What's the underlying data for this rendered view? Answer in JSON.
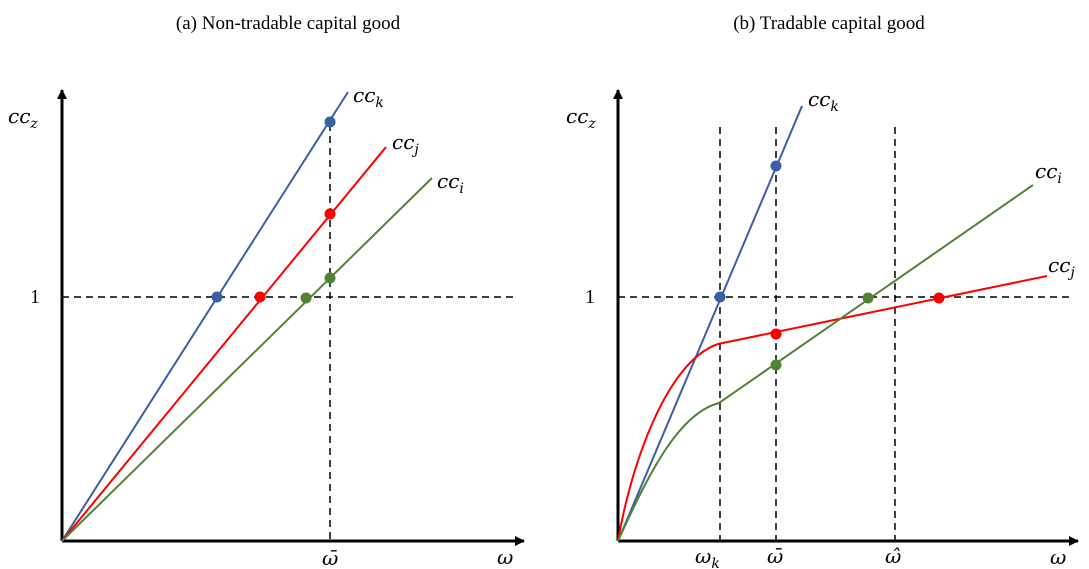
{
  "panels": [
    {
      "title": "(a) Non-tradable capital good",
      "y_axis_label": "cc",
      "y_axis_label_sub": "z",
      "x_axis_label": "ω",
      "y_tick": "1",
      "x_ticks": [
        "ω̄"
      ],
      "curves": [
        {
          "label": "cc",
          "sub": "k",
          "color": "#3b5ea7"
        },
        {
          "label": "cc",
          "sub": "j",
          "color": "#ff0000"
        },
        {
          "label": "cc",
          "sub": "i",
          "color": "#548235"
        }
      ]
    },
    {
      "title": "(b) Tradable capital good",
      "y_axis_label": "cc",
      "y_axis_label_sub": "z",
      "x_axis_label": "ω",
      "y_tick": "1",
      "x_ticks": [
        "ω",
        "ω̄",
        "ω̂"
      ],
      "x_tick_subs": [
        "k",
        "",
        ""
      ],
      "curves": [
        {
          "label": "cc",
          "sub": "k",
          "color": "#3b5ea7"
        },
        {
          "label": "cc",
          "sub": "i",
          "color": "#548235"
        },
        {
          "label": "cc",
          "sub": "j",
          "color": "#ff0000"
        }
      ]
    }
  ]
}
